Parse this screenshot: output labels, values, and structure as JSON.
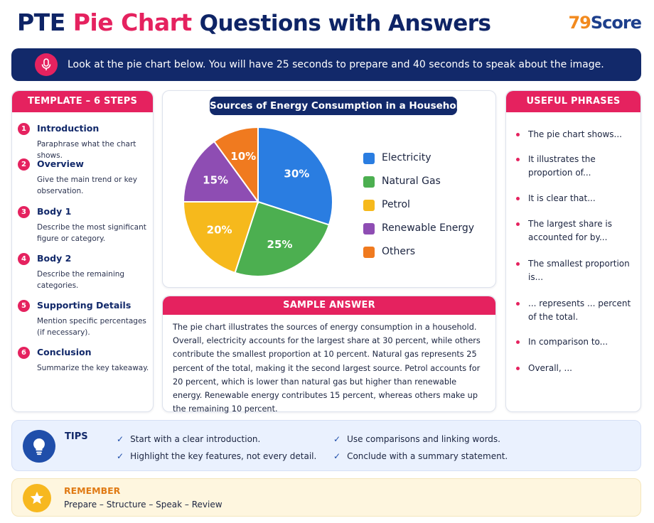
{
  "header": {
    "title_part1": "PTE",
    "title_part2": "Pie Chart",
    "title_part3": "Questions with Answers",
    "logo_part1": "79",
    "logo_part2": "Score"
  },
  "banner": {
    "icon": "microphone-icon",
    "text": "Look at the pie chart below. You will have 25 seconds to prepare and 40 seconds to speak about the image."
  },
  "template": {
    "heading": "TEMPLATE – 6 STEPS",
    "steps": [
      {
        "num": "1",
        "title": "Introduction",
        "desc": "Paraphrase what the chart shows."
      },
      {
        "num": "2",
        "title": "Overview",
        "desc": "Give the main trend or key observation."
      },
      {
        "num": "3",
        "title": "Body 1",
        "desc": "Describe the most significant figure or category."
      },
      {
        "num": "4",
        "title": "Body 2",
        "desc": "Describe the remaining categories."
      },
      {
        "num": "5",
        "title": "Supporting Details",
        "desc": "Mention specific percentages (if necessary)."
      },
      {
        "num": "6",
        "title": "Conclusion",
        "desc": "Summarize the key takeaway."
      }
    ]
  },
  "chart_data": {
    "type": "pie",
    "title": "Sources of Energy Consumption in a Household",
    "categories": [
      "Electricity",
      "Natural Gas",
      "Petrol",
      "Renewable Energy",
      "Others"
    ],
    "values": [
      30,
      25,
      20,
      15,
      10
    ],
    "labels": [
      "30%",
      "25%",
      "20%",
      "15%",
      "10%"
    ],
    "colors": [
      "#2a7de1",
      "#4caf50",
      "#f6b91c",
      "#8e4db3",
      "#f07a1f"
    ],
    "legend": "right"
  },
  "sample_answer": {
    "heading": "SAMPLE ANSWER",
    "text": "The pie chart illustrates the sources of energy consumption in a household. Overall, electricity accounts for the largest share at 30 percent, while others contribute the smallest proportion at 10 percent. Natural gas represents 25 percent of the total, making it the second largest source. Petrol accounts for 20 percent, which is lower than natural gas but higher than renewable energy. Renewable energy contributes 15 percent, whereas others make up the remaining 10 percent."
  },
  "phrases": {
    "heading": "USEFUL PHRASES",
    "items": [
      "The pie chart shows...",
      "It illustrates the proportion of...",
      "It is clear that...",
      "The largest share is accounted for by...",
      "The smallest proportion is...",
      "... represents ... percent of the total.",
      "In comparison to...",
      "Overall, ..."
    ]
  },
  "tips": {
    "icon": "lightbulb-icon",
    "label": "TIPS",
    "items": [
      "Start with a clear introduction.",
      "Highlight the key features, not every detail.",
      "Use comparisons and linking words.",
      "Conclude with a summary statement."
    ]
  },
  "remember": {
    "icon": "star-icon",
    "label": "REMEMBER",
    "text": "Prepare – Structure – Speak – Review"
  }
}
